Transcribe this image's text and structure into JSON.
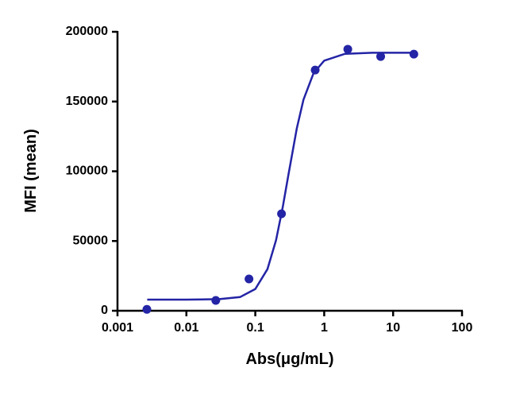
{
  "chart_data": {
    "type": "scatter",
    "xlabel": "Abs(μg/mL)",
    "ylabel": "MFI (mean)",
    "xscale": "log",
    "xlim": [
      0.001,
      100
    ],
    "xticks": [
      0.001,
      0.01,
      0.1,
      1,
      10,
      100
    ],
    "ylim": [
      0,
      200000
    ],
    "yticks": [
      0,
      50000,
      100000,
      150000,
      200000
    ],
    "color": "#2424a6",
    "x": [
      0.00267,
      0.0267,
      0.081,
      0.24,
      0.74,
      2.2,
      6.6,
      20
    ],
    "values": [
      1000,
      7400,
      22800,
      69500,
      172600,
      187500,
      182300,
      184000
    ],
    "fit": {
      "x": [
        0.0027,
        0.01,
        0.03,
        0.06,
        0.1,
        0.15,
        0.2,
        0.25,
        0.3,
        0.4,
        0.5,
        0.7,
        1,
        2,
        5,
        20
      ],
      "values": [
        8000,
        8000,
        8300,
        9800,
        15600,
        29800,
        50600,
        74200,
        96500,
        130700,
        151300,
        170300,
        179300,
        184200,
        185000,
        185000
      ]
    }
  }
}
